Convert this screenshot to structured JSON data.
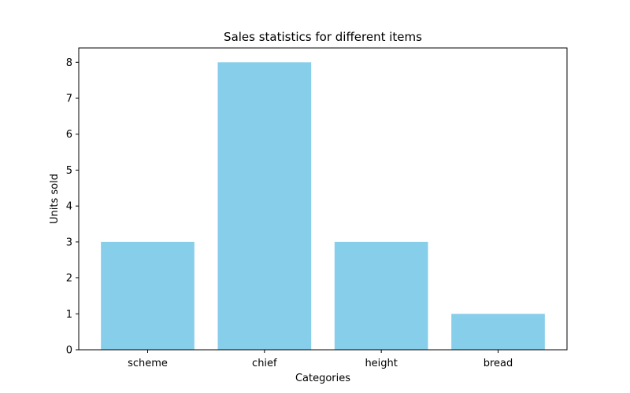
{
  "chart_data": {
    "type": "bar",
    "title": "Sales statistics for different items",
    "xlabel": "Categories",
    "ylabel": "Units sold",
    "categories": [
      "scheme",
      "chief",
      "height",
      "bread"
    ],
    "values": [
      3,
      8,
      3,
      1
    ],
    "ylim": [
      0,
      8.4
    ],
    "yticks": [
      0,
      1,
      2,
      3,
      4,
      5,
      6,
      7,
      8
    ],
    "bar_color": "#87ceeb",
    "grid": false,
    "legend": "none"
  }
}
